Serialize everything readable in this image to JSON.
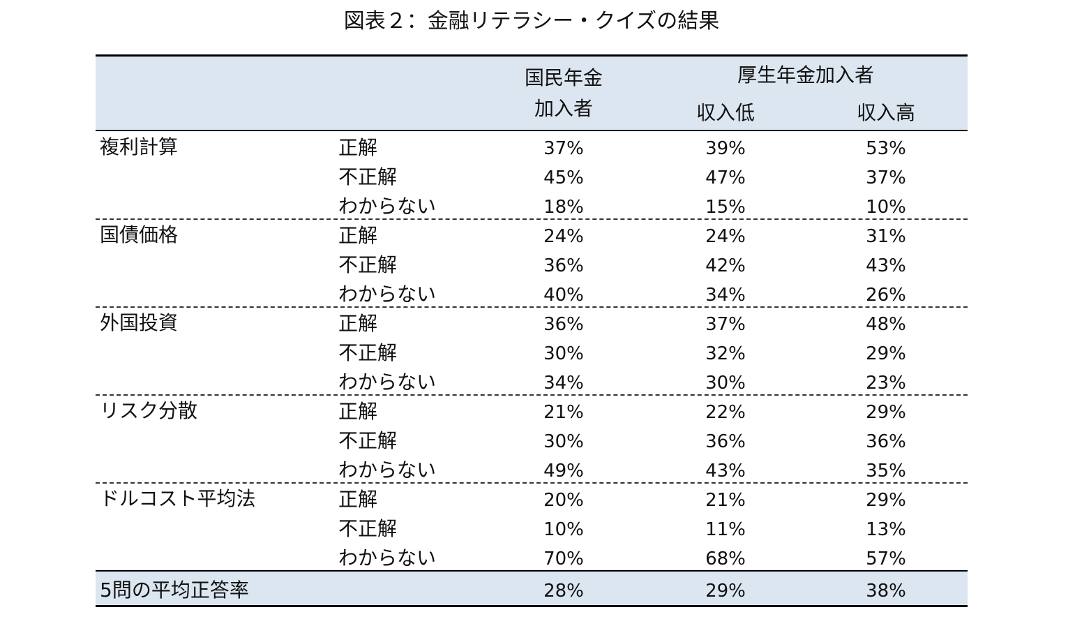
{
  "title": "図表２：金融リテラシー・クイズの結果",
  "header": {
    "col1": [
      "国民年金",
      "加入者"
    ],
    "group": "厚生年金加入者",
    "sub": [
      "収入低",
      "収入高"
    ]
  },
  "table": {
    "groups": [
      {
        "topic": "複利計算",
        "rows": [
          {
            "answer": "正解",
            "values": [
              "37%",
              "39%",
              "53%"
            ]
          },
          {
            "answer": "不正解",
            "values": [
              "45%",
              "47%",
              "37%"
            ]
          },
          {
            "answer": "わからない",
            "values": [
              "18%",
              "15%",
              "10%"
            ]
          }
        ]
      },
      {
        "topic": "国債価格",
        "rows": [
          {
            "answer": "正解",
            "values": [
              "24%",
              "24%",
              "31%"
            ]
          },
          {
            "answer": "不正解",
            "values": [
              "36%",
              "42%",
              "43%"
            ]
          },
          {
            "answer": "わからない",
            "values": [
              "40%",
              "34%",
              "26%"
            ]
          }
        ]
      },
      {
        "topic": "外国投資",
        "rows": [
          {
            "answer": "正解",
            "values": [
              "36%",
              "37%",
              "48%"
            ]
          },
          {
            "answer": "不正解",
            "values": [
              "30%",
              "32%",
              "29%"
            ]
          },
          {
            "answer": "わからない",
            "values": [
              "34%",
              "30%",
              "23%"
            ]
          }
        ]
      },
      {
        "topic": "リスク分散",
        "rows": [
          {
            "answer": "正解",
            "values": [
              "21%",
              "22%",
              "29%"
            ]
          },
          {
            "answer": "不正解",
            "values": [
              "30%",
              "36%",
              "36%"
            ]
          },
          {
            "answer": "わからない",
            "values": [
              "49%",
              "43%",
              "35%"
            ]
          }
        ]
      },
      {
        "topic": "ドルコスト平均法",
        "rows": [
          {
            "answer": "正解",
            "values": [
              "20%",
              "21%",
              "29%"
            ]
          },
          {
            "answer": "不正解",
            "values": [
              "10%",
              "11%",
              "13%"
            ]
          },
          {
            "answer": "わからない",
            "values": [
              "70%",
              "68%",
              "57%"
            ]
          }
        ]
      }
    ]
  },
  "footer": {
    "label": "5問の平均正答率",
    "values": [
      "28%",
      "29%",
      "38%"
    ]
  }
}
